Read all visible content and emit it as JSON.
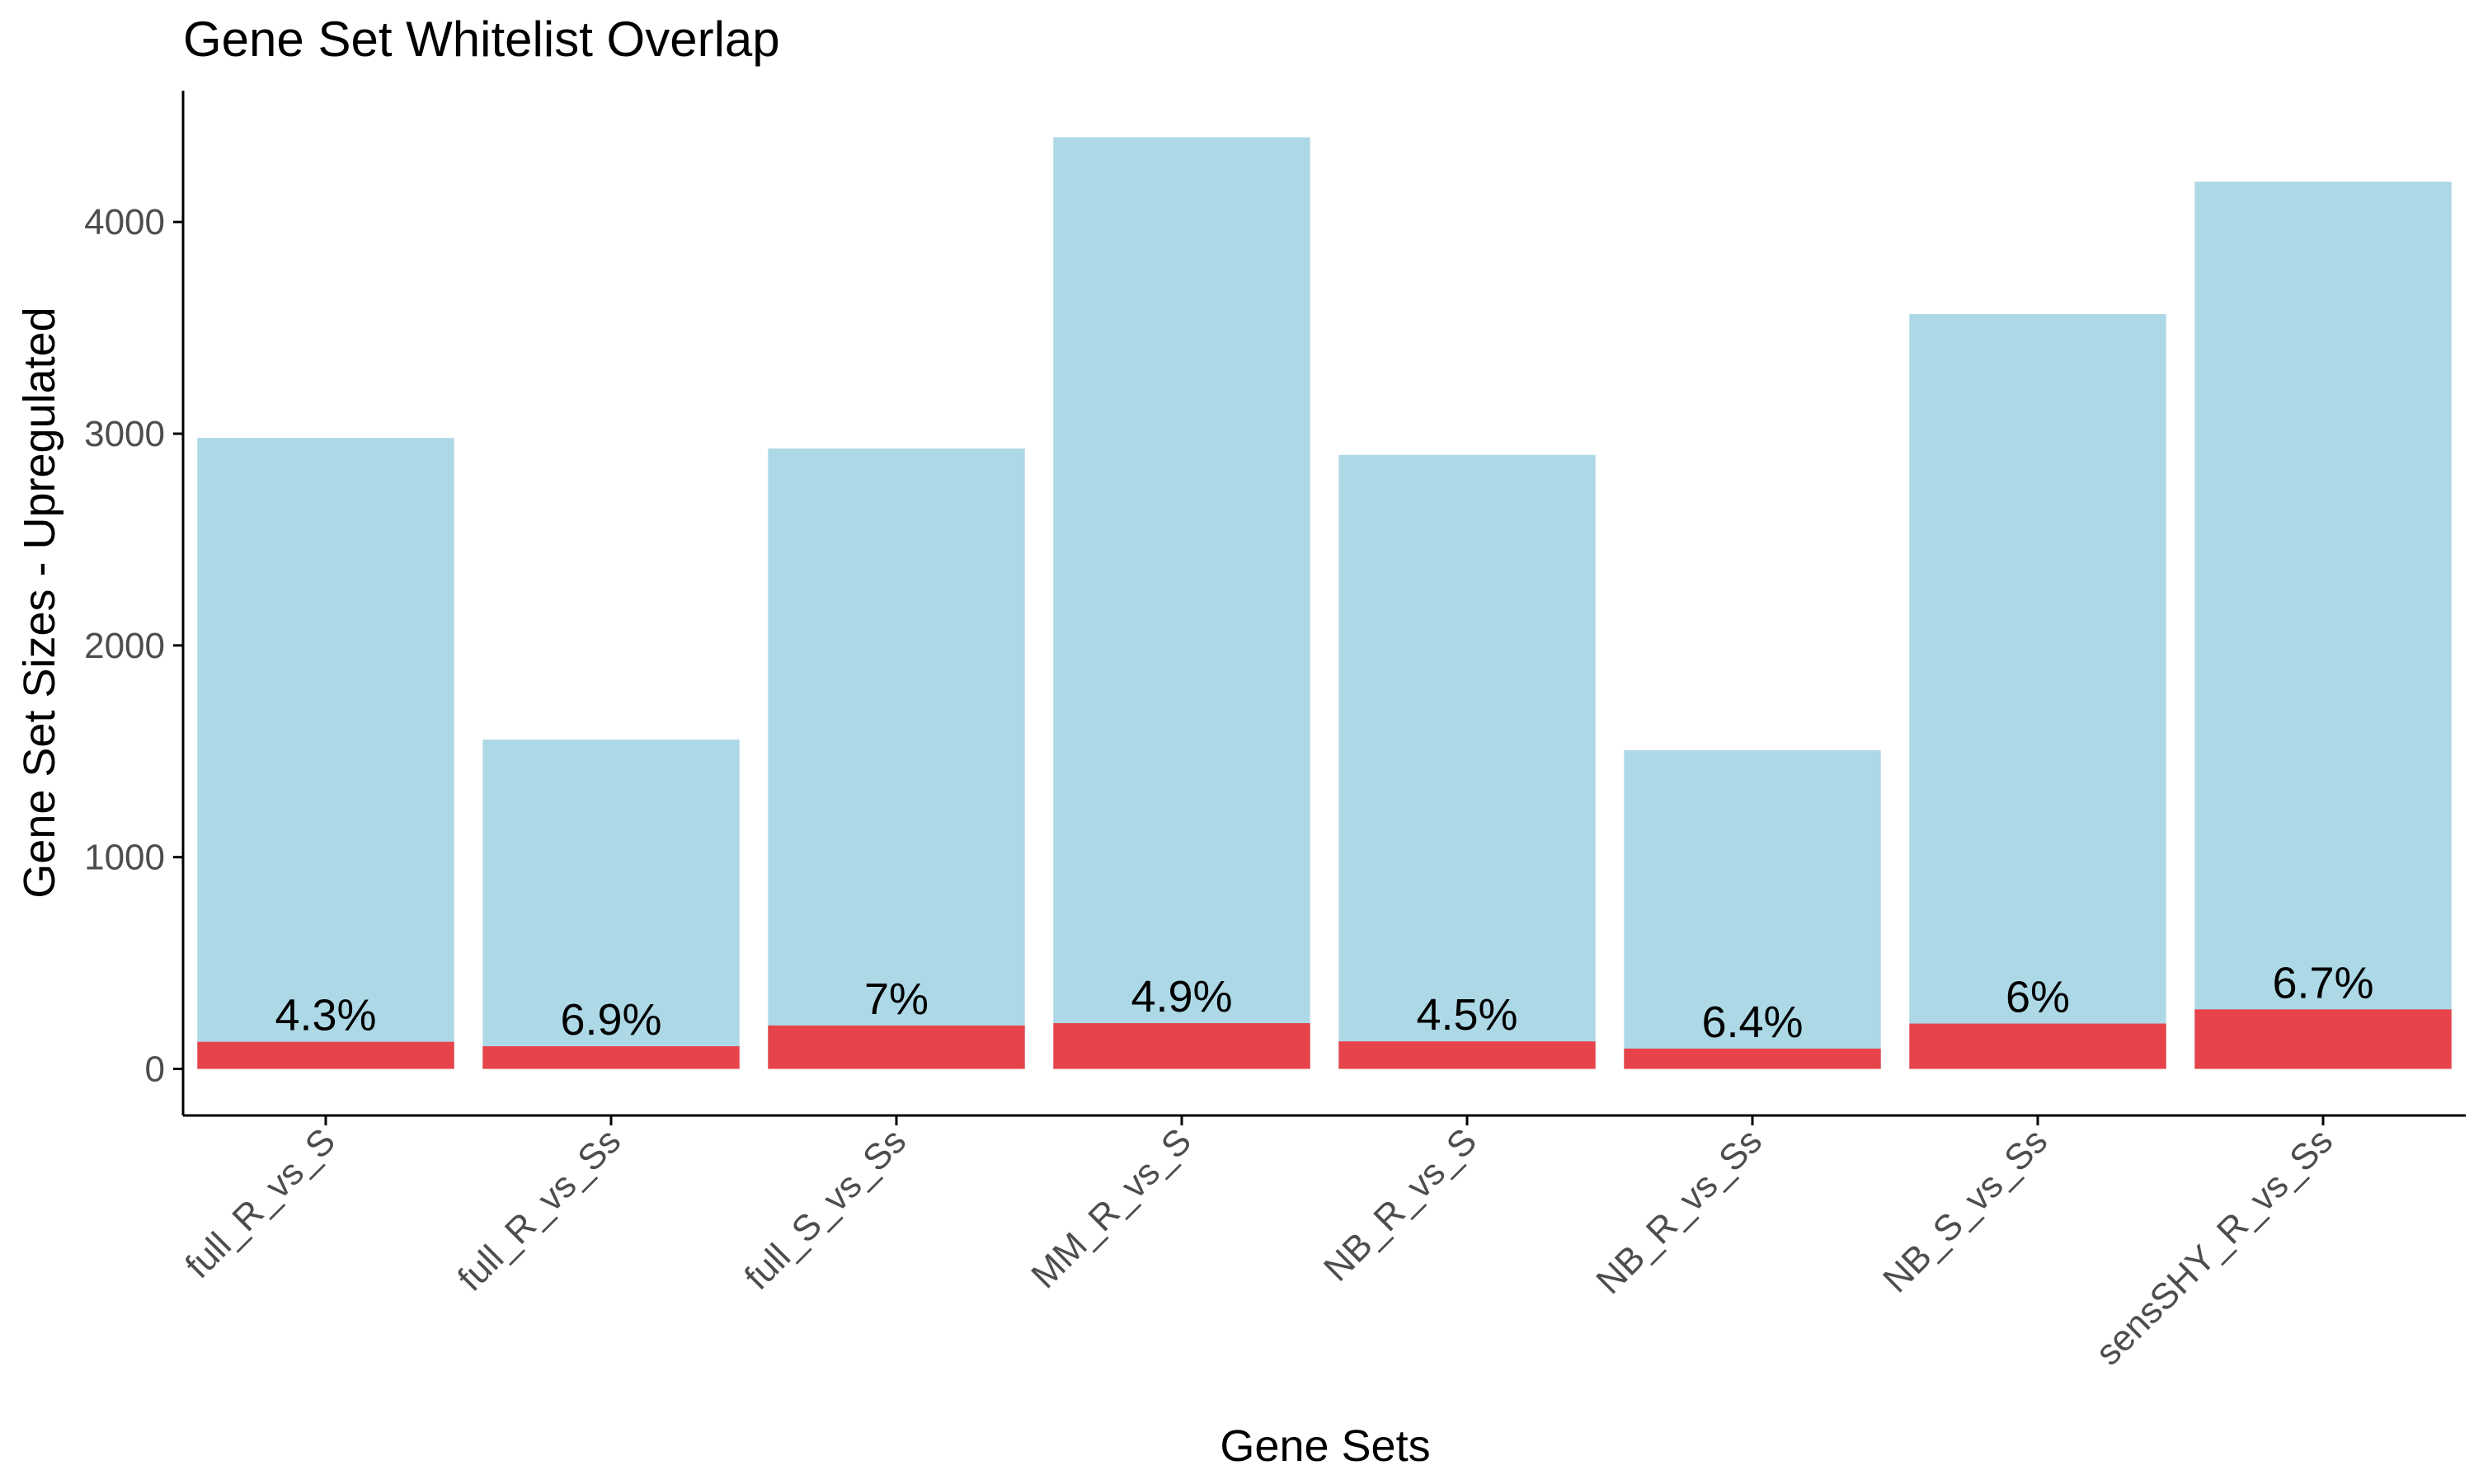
{
  "chart_data": {
    "type": "bar",
    "title": "Gene Set Whitelist Overlap",
    "xlabel": "Gene Sets",
    "ylabel": "Gene Set Sizes - Upregulated",
    "categories": [
      "full_R_vs_S",
      "full_R_vs_Ss",
      "full_S_vs_Ss",
      "MM_R_vs_S",
      "NB_R_vs_S",
      "NB_R_vs_Ss",
      "NB_S_vs_Ss",
      "sensSHY_R_vs_Ss"
    ],
    "series": [
      {
        "values": [
          2980,
          1555,
          2930,
          4400,
          2900,
          1505,
          3565,
          4190
        ]
      },
      {
        "values": [
          128,
          107,
          205,
          216,
          130,
          96,
          214,
          281
        ]
      }
    ],
    "data_labels": [
      "4.3%",
      "6.9%",
      "7%",
      "4.9%",
      "4.5%",
      "6.4%",
      "6%",
      "6.7%"
    ],
    "y_ticks": [
      0,
      1000,
      2000,
      3000,
      4000
    ],
    "ylim": [
      -220,
      4620
    ],
    "grid": false,
    "legend": "none",
    "colors": {
      "total": "#add8e6",
      "overlap": "#e6434a",
      "axis": "#000000",
      "tick_text": "#4d4d4d"
    }
  }
}
